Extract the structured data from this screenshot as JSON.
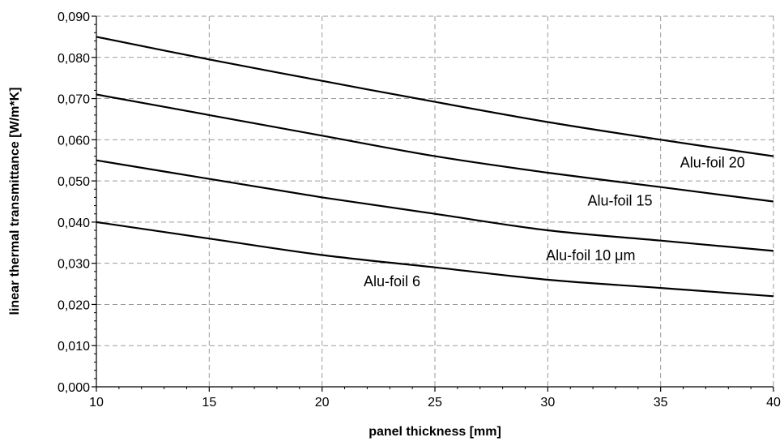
{
  "chart_data": {
    "type": "line",
    "title": "",
    "xlabel": "panel thickness [mm]",
    "ylabel": "linear thermal transmittance [W/m*K]",
    "xlim": [
      10,
      40
    ],
    "ylim": [
      0,
      0.09
    ],
    "grid": true,
    "x_ticks": [
      "10",
      "15",
      "20",
      "25",
      "30",
      "35",
      "40"
    ],
    "y_ticks": [
      "0,000",
      "0,010",
      "0,020",
      "0,030",
      "0,040",
      "0,050",
      "0,060",
      "0,070",
      "0,080",
      "0,090"
    ],
    "x": [
      10,
      15,
      20,
      25,
      30,
      35,
      40
    ],
    "series": [
      {
        "name": "Alu-foil 20",
        "values": [
          0.085,
          0.0795,
          0.0743,
          0.0692,
          0.0643,
          0.06,
          0.056
        ]
      },
      {
        "name": "Alu-foil 15",
        "values": [
          0.071,
          0.066,
          0.061,
          0.056,
          0.052,
          0.0485,
          0.045
        ]
      },
      {
        "name": "Alu-foil 10 μm",
        "values": [
          0.055,
          0.0505,
          0.046,
          0.042,
          0.038,
          0.0355,
          0.033
        ]
      },
      {
        "name": "Alu-foil 6",
        "values": [
          0.04,
          0.036,
          0.032,
          0.029,
          0.026,
          0.024,
          0.022
        ]
      }
    ]
  }
}
